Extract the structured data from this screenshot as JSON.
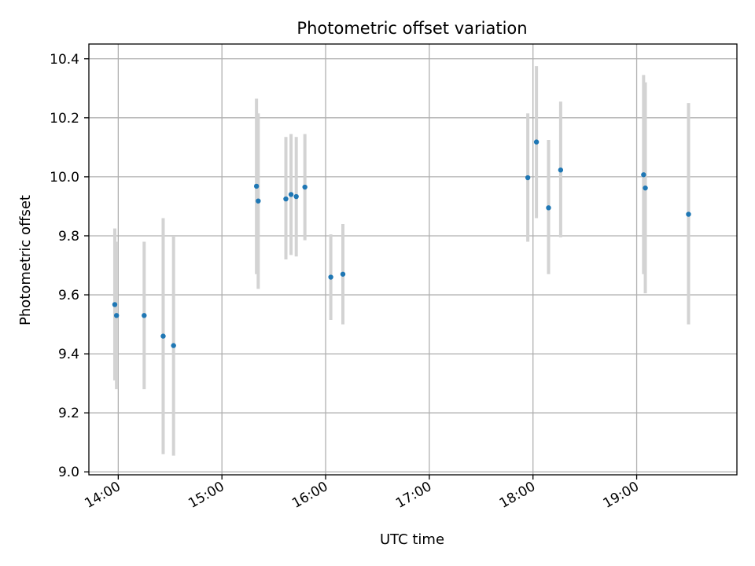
{
  "chart_data": {
    "type": "scatter",
    "title": "Photometric offset variation",
    "xlabel": "UTC time",
    "ylabel": "Photometric offset",
    "x_ticks": [
      "14:00",
      "15:00",
      "16:00",
      "17:00",
      "18:00",
      "19:00"
    ],
    "y_ticks": [
      "9.0",
      "9.2",
      "9.4",
      "9.6",
      "9.8",
      "10.0",
      "10.2",
      "10.4"
    ],
    "xlim": [
      "13:43",
      "19:58"
    ],
    "ylim": [
      8.99,
      10.45
    ],
    "grid": true,
    "colors": {
      "point": "#1f77b4",
      "errorbar": "#d3d3d3",
      "grid": "#b0b0b0"
    },
    "series": [
      {
        "points": [
          {
            "x": "13:58",
            "y": 9.567,
            "ylow": 9.31,
            "yhigh": 9.825
          },
          {
            "x": "13:59",
            "y": 9.53,
            "ylow": 9.28,
            "yhigh": 9.78
          },
          {
            "x": "14:15",
            "y": 9.53,
            "ylow": 9.28,
            "yhigh": 9.78
          },
          {
            "x": "14:26",
            "y": 9.46,
            "ylow": 9.06,
            "yhigh": 9.86
          },
          {
            "x": "14:32",
            "y": 9.428,
            "ylow": 9.055,
            "yhigh": 9.8
          },
          {
            "x": "15:20",
            "y": 9.968,
            "ylow": 9.67,
            "yhigh": 10.265
          },
          {
            "x": "15:21",
            "y": 9.918,
            "ylow": 9.62,
            "yhigh": 10.215
          },
          {
            "x": "15:37",
            "y": 9.925,
            "ylow": 9.72,
            "yhigh": 10.135
          },
          {
            "x": "15:40",
            "y": 9.94,
            "ylow": 9.735,
            "yhigh": 10.145
          },
          {
            "x": "15:43",
            "y": 9.933,
            "ylow": 9.73,
            "yhigh": 10.135
          },
          {
            "x": "15:48",
            "y": 9.965,
            "ylow": 9.785,
            "yhigh": 10.145
          },
          {
            "x": "16:03",
            "y": 9.66,
            "ylow": 9.515,
            "yhigh": 9.805
          },
          {
            "x": "16:10",
            "y": 9.67,
            "ylow": 9.5,
            "yhigh": 9.84
          },
          {
            "x": "17:57",
            "y": 9.997,
            "ylow": 9.78,
            "yhigh": 10.215
          },
          {
            "x": "18:02",
            "y": 10.118,
            "ylow": 9.86,
            "yhigh": 10.375
          },
          {
            "x": "18:09",
            "y": 9.895,
            "ylow": 9.67,
            "yhigh": 10.125
          },
          {
            "x": "18:16",
            "y": 10.023,
            "ylow": 9.795,
            "yhigh": 10.255
          },
          {
            "x": "19:04",
            "y": 10.007,
            "ylow": 9.67,
            "yhigh": 10.345
          },
          {
            "x": "19:05",
            "y": 9.962,
            "ylow": 9.605,
            "yhigh": 10.32
          },
          {
            "x": "19:30",
            "y": 9.873,
            "ylow": 9.5,
            "yhigh": 10.25
          }
        ]
      }
    ]
  }
}
